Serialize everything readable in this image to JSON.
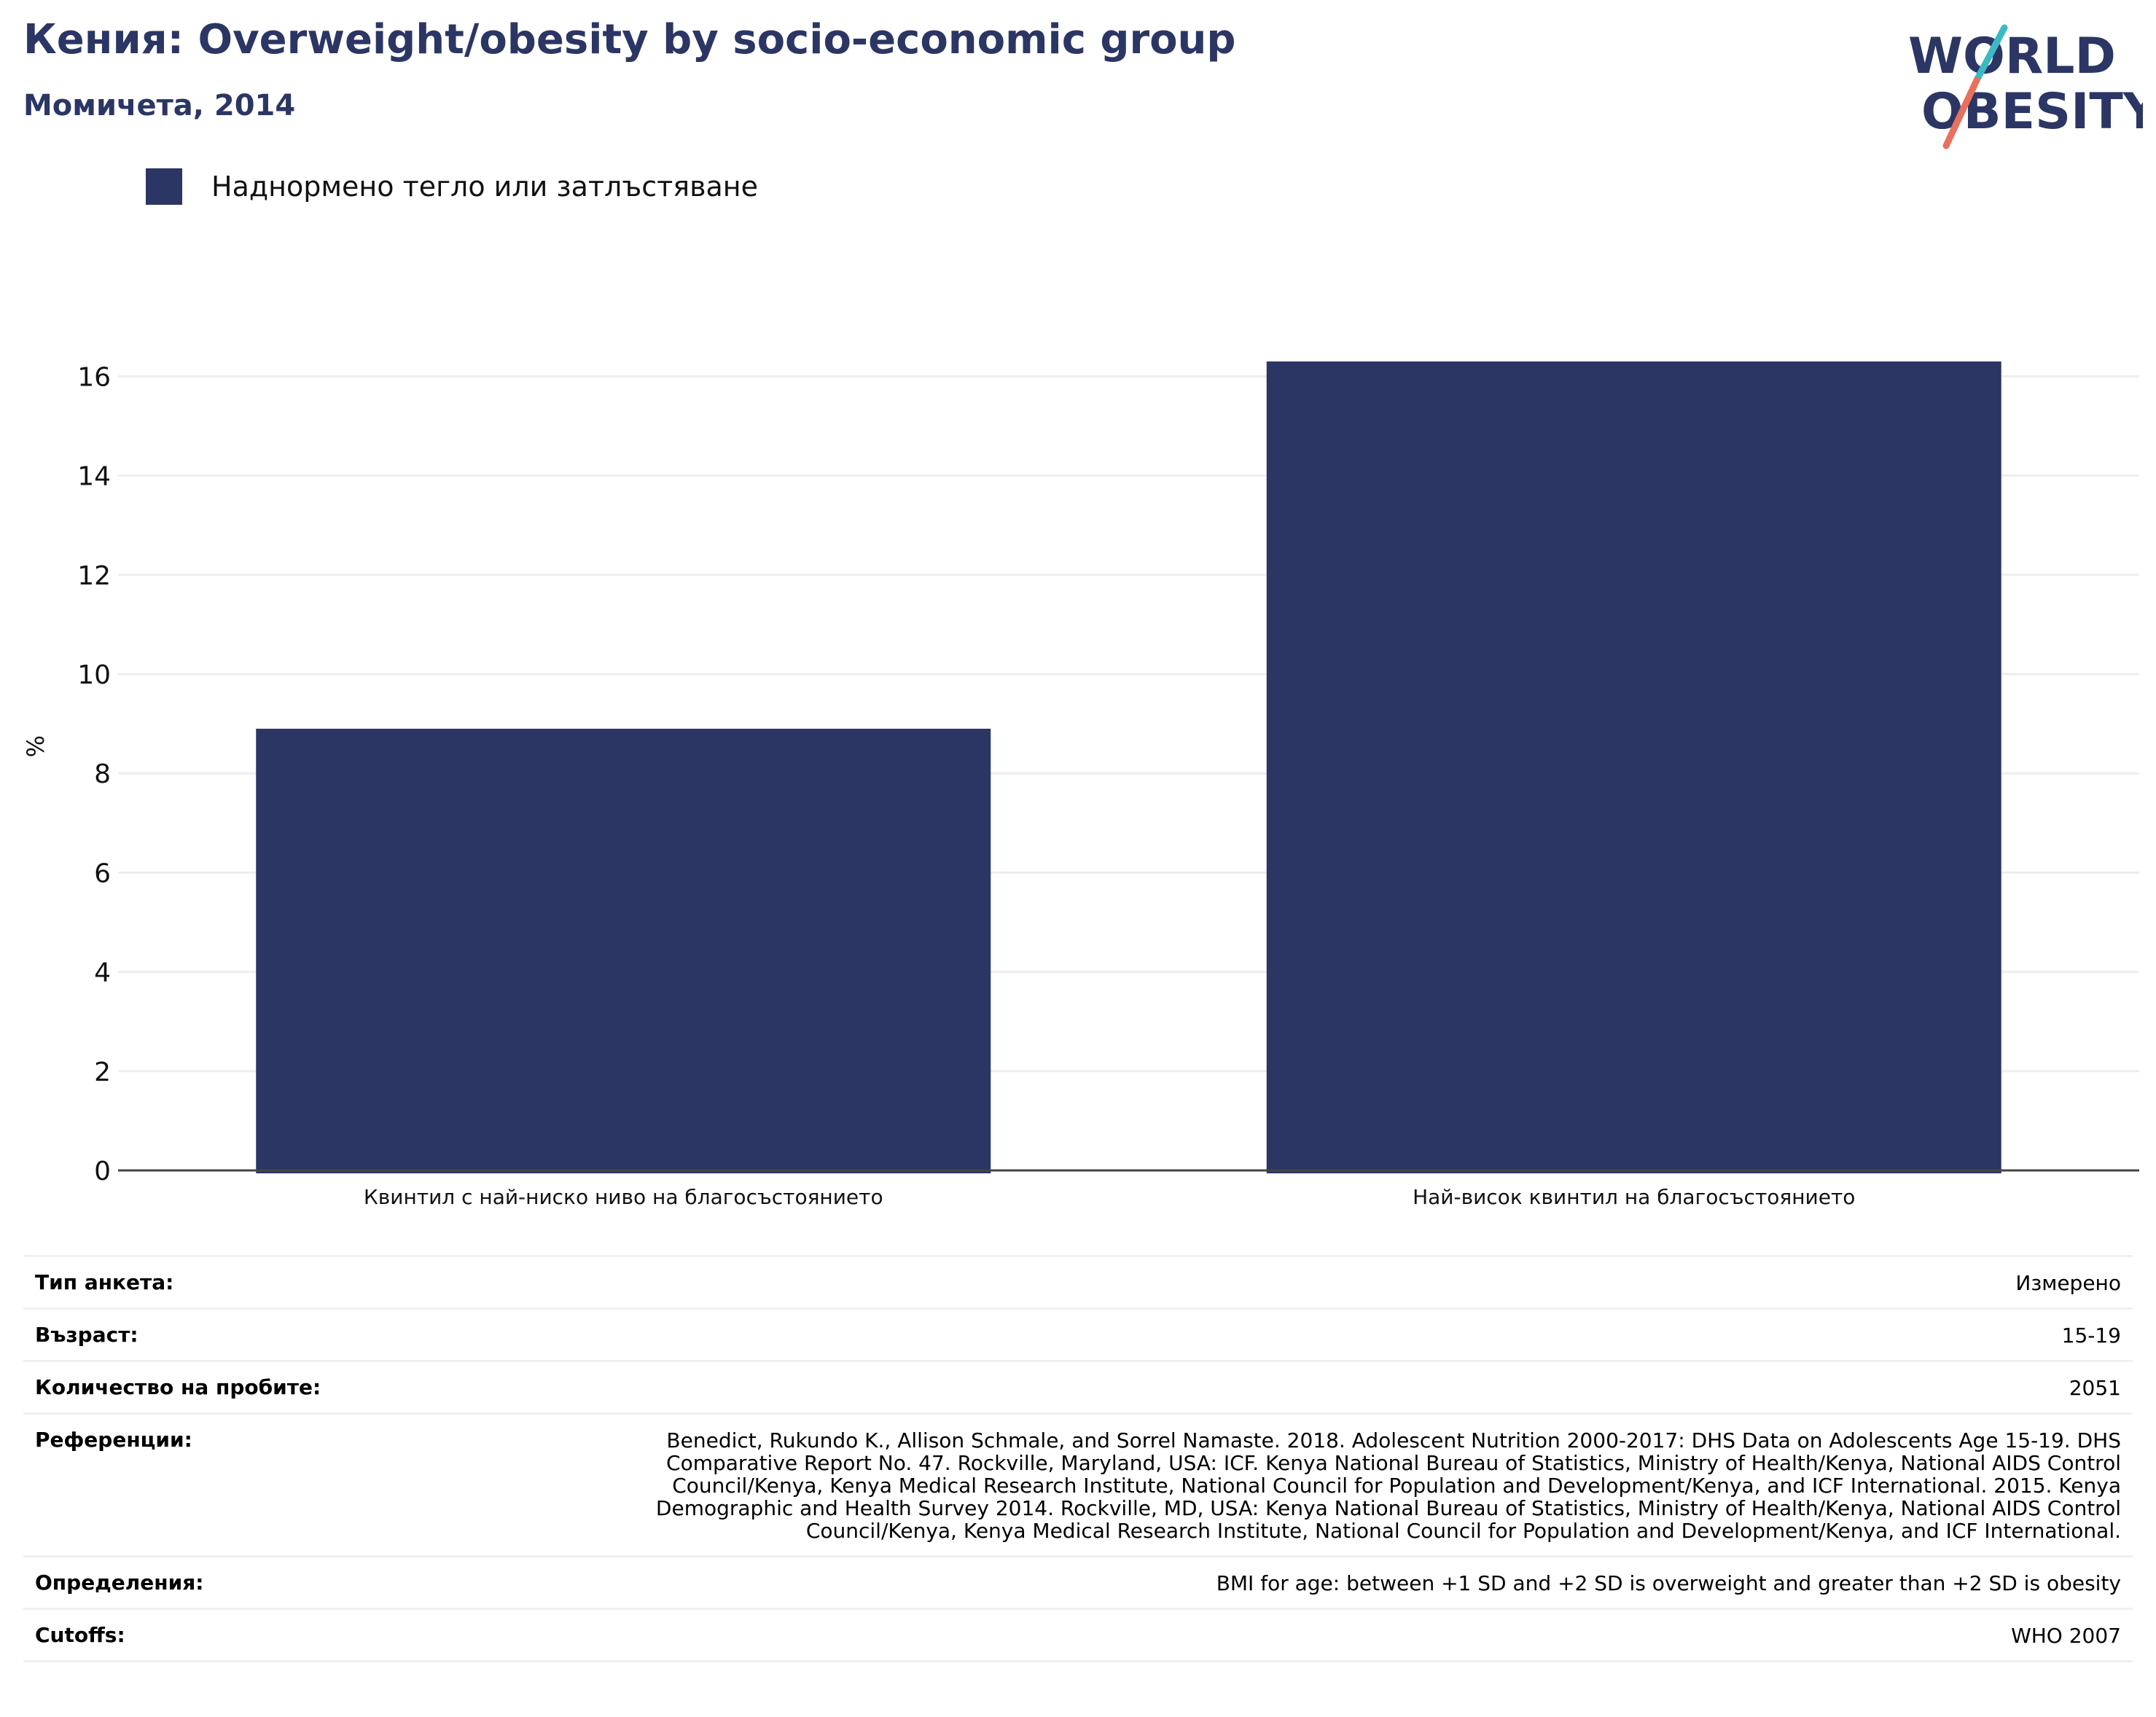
{
  "header": {
    "title": "Кения: Overweight/obesity by socio-economic group",
    "subtitle": "Момичета, 2014"
  },
  "logo": {
    "line1": "WORLD",
    "line2": "OBESITY",
    "colors": {
      "text": "#2b3664",
      "slash_teal": "#3bb9c4",
      "slash_coral": "#e9705e"
    }
  },
  "legend": {
    "items": [
      {
        "label": "Наднормено тегло или затлъстяване",
        "color": "#2b3664"
      }
    ]
  },
  "chart_data": {
    "type": "bar",
    "categories": [
      "Квинтил с най-ниско ниво на благосъстоянието",
      "Най-висок квинтил на благосъстоянието"
    ],
    "series": [
      {
        "name": "Наднормено тегло или затлъстяване",
        "values": [
          8.9,
          16.3
        ],
        "color": "#2b3664"
      }
    ],
    "ylabel": "%",
    "xlabel": "",
    "ylim": [
      0,
      17
    ],
    "yticks": [
      0,
      2,
      4,
      6,
      8,
      10,
      12,
      14,
      16
    ],
    "grid": true,
    "legend_position": "top-left"
  },
  "meta": {
    "rows": [
      {
        "key": "Тип анкета:",
        "value": "Измерено"
      },
      {
        "key": "Възраст:",
        "value": "15-19"
      },
      {
        "key": "Количество на пробите:",
        "value": "2051"
      },
      {
        "key": "Референции:",
        "value": "Benedict, Rukundo K., Allison Schmale, and Sorrel Namaste. 2018. Adolescent Nutrition 2000-2017: DHS Data on Adolescents Age 15-19. DHS Comparative Report No. 47. Rockville, Maryland, USA: ICF. Kenya National Bureau of Statistics, Ministry of Health/Kenya, National AIDS Control Council/Kenya, Kenya Medical Research Institute, National Council for Population and Development/Kenya, and ICF International. 2015. Kenya Demographic and Health Survey 2014. Rockville, MD, USA: Kenya National Bureau of Statistics, Ministry of Health/Kenya, National AIDS Control Council/Kenya, Kenya Medical Research Institute, National Council for Population and Development/Kenya, and ICF International."
      },
      {
        "key": "Определения:",
        "value": "BMI for age: between +1 SD and +2 SD is overweight and greater than +2 SD is obesity"
      },
      {
        "key": "Cutoffs:",
        "value": "WHO 2007"
      }
    ]
  }
}
